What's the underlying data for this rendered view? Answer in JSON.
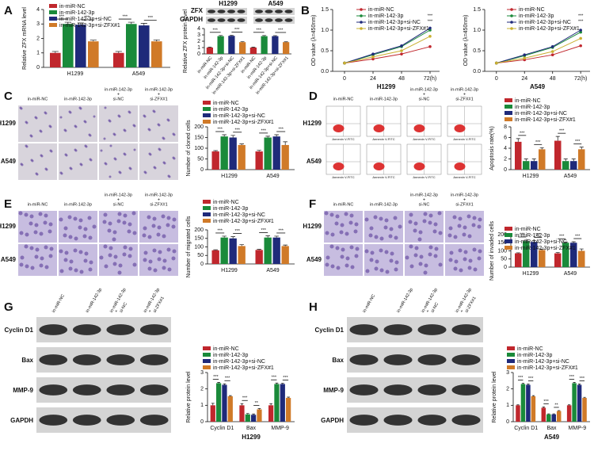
{
  "panel_labels": [
    "A",
    "B",
    "C",
    "D",
    "E",
    "F",
    "G",
    "H"
  ],
  "blot_A": {
    "rows": [
      "ZFX",
      "GAPDH"
    ],
    "groups": [
      "H1299",
      "A549"
    ]
  },
  "images_C": {
    "columns": [
      [
        "in-miR-NC"
      ],
      [
        "in-miR-142-3p"
      ],
      [
        "in-miR-142-3p",
        "+",
        "si-NC"
      ],
      [
        "in-miR-142-3p",
        "+",
        "si-ZFX#1"
      ]
    ],
    "rows": [
      "H1299",
      "A549"
    ]
  },
  "images_D": {
    "columns": [
      [
        "in-miR-NC"
      ],
      [
        "in-miR-142-3p"
      ],
      [
        "in-miR-142-3p",
        "+",
        "si-NC"
      ],
      [
        "in-miR-142-3p",
        "+",
        "si-ZFX#1"
      ]
    ],
    "rows": [
      "H1299",
      "A549"
    ],
    "flow_axis_label": "Annexin V-FITC"
  },
  "images_E": {
    "columns": [
      [
        "in-miR-NC"
      ],
      [
        "in-miR-142-3p"
      ],
      [
        "in-miR-142-3p",
        "+",
        "si-NC"
      ],
      [
        "in-miR-142-3p",
        "+",
        "si-ZFX#1"
      ]
    ],
    "rows": [
      "H1299",
      "A549"
    ]
  },
  "images_F": {
    "columns": [
      [
        "in-miR-NC"
      ],
      [
        "in-miR-142-3p"
      ],
      [
        "in-miR-142-3p",
        "+",
        "si-NC"
      ],
      [
        "in-miR-142-3p",
        "+",
        "si-ZFX#1"
      ]
    ],
    "rows": [
      "H1299",
      "A549"
    ]
  },
  "blot_G": {
    "columns": [
      [
        "in-miR-NC"
      ],
      [
        "in-miR-142-3p"
      ],
      [
        "in-miR-142-3p",
        "+",
        "si-NC"
      ],
      [
        "in-miR-142-3p",
        "+",
        "si-ZFX#1"
      ]
    ],
    "rows": [
      "Cyclin D1",
      "Bax",
      "MMP-9",
      "GAPDH"
    ]
  },
  "blot_H": {
    "columns": [
      [
        "in-miR-NC"
      ],
      [
        "in-miR-142-3p"
      ],
      [
        "in-miR-142-3p",
        "+",
        "si-NC"
      ],
      [
        "in-miR-142-3p",
        "+",
        "si-ZFX#1"
      ]
    ],
    "rows": [
      "Cyclin D1",
      "Bax",
      "MMP-9",
      "GAPDH"
    ]
  },
  "chart_data": [
    {
      "type": "bar",
      "ylabel": "Relative ZFX mRNA level",
      "categories": [
        "H1299",
        "A549"
      ],
      "ylim": [
        0,
        4
      ],
      "yticks": [
        0,
        1,
        2,
        3,
        4
      ],
      "series": [
        {
          "name": "in-miR-NC",
          "color": "#c0272d",
          "values": [
            1.0,
            1.0
          ],
          "errors": [
            0.1,
            0.1
          ]
        },
        {
          "name": "in-miR-142-3p",
          "color": "#1a8a3a",
          "values": [
            3.0,
            3.0
          ],
          "errors": [
            0.12,
            0.12
          ]
        },
        {
          "name": "in-miR-142-3p+si-NC",
          "color": "#1f2a7a",
          "values": [
            2.95,
            2.9
          ],
          "errors": [
            0.12,
            0.15
          ]
        },
        {
          "name": "in-miR-142-3p+si-ZFX#1",
          "color": "#d07a28",
          "values": [
            1.8,
            1.8
          ],
          "errors": [
            0.08,
            0.1
          ]
        }
      ],
      "sig": [
        [
          "***",
          "***"
        ],
        [
          "***",
          "***"
        ]
      ]
    },
    {
      "type": "bar",
      "ylabel": "Relative ZFX protein level",
      "categories": [
        "in-miR-NC",
        "in-miR-142-3p",
        "in-miR-142-3p+si-NC",
        "in-miR-142-3p+si-ZFX#1",
        "in-miR-NC",
        "in-miR-142-3p",
        "in-miR-142-3p+si-NC",
        "in-miR-142-3p+si-ZFX#1"
      ],
      "values": [
        1.0,
        2.8,
        2.85,
        1.85,
        1.0,
        2.8,
        2.8,
        1.85
      ],
      "errors": [
        0.08,
        0.1,
        0.08,
        0.08,
        0.08,
        0.1,
        0.08,
        0.06
      ],
      "colors": [
        "#c0272d",
        "#1a8a3a",
        "#1f2a7a",
        "#d07a28",
        "#c0272d",
        "#1a8a3a",
        "#1f2a7a",
        "#d07a28"
      ],
      "ylim": [
        0,
        4
      ],
      "yticks": [
        0,
        1,
        2,
        3,
        4
      ],
      "sig": [
        "***",
        "***",
        "***",
        "***"
      ]
    },
    {
      "type": "line",
      "ylabel": "OD value (λ=450nm)",
      "xlabel": "H1299",
      "x": [
        0,
        24,
        48,
        72
      ],
      "xlim": [
        -10,
        80
      ],
      "xticks": [
        0,
        24,
        48,
        {
          "value": 72,
          "label": "72(h)"
        }
      ],
      "ylim": [
        0,
        1.5
      ],
      "yticks": [
        {
          "value": 0,
          "label": "0.0"
        },
        0.5,
        {
          "value": 1,
          "label": "1.0"
        },
        1.5
      ],
      "series": [
        {
          "name": "in-miR-NC",
          "color": "#c0272d",
          "values": [
            0.2,
            0.3,
            0.42,
            0.6
          ]
        },
        {
          "name": "in-miR-142-3p",
          "color": "#1a8a3a",
          "values": [
            0.2,
            0.4,
            0.6,
            1.0
          ]
        },
        {
          "name": "in-miR-142-3p+si-NC",
          "color": "#1f2a7a",
          "values": [
            0.2,
            0.42,
            0.62,
            1.05
          ]
        },
        {
          "name": "in-miR-142-3p+si-ZFX#1",
          "color": "#c9b030",
          "values": [
            0.2,
            0.35,
            0.5,
            0.85
          ]
        }
      ],
      "sig": [
        "***",
        "***"
      ]
    },
    {
      "type": "line",
      "ylabel": "OD value (λ=450nm)",
      "xlabel": "A549",
      "x": [
        0,
        24,
        48,
        72
      ],
      "xlim": [
        -10,
        80
      ],
      "xticks": [
        0,
        24,
        48,
        {
          "value": 72,
          "label": "72(h)"
        }
      ],
      "ylim": [
        0,
        1.5
      ],
      "yticks": [
        {
          "value": 0,
          "label": "0.0"
        },
        0.5,
        {
          "value": 1,
          "label": "1.0"
        },
        1.5
      ],
      "series": [
        {
          "name": "in-miR-NC",
          "color": "#c0272d",
          "values": [
            0.2,
            0.28,
            0.4,
            0.62
          ]
        },
        {
          "name": "in-miR-142-3p",
          "color": "#1a8a3a",
          "values": [
            0.2,
            0.38,
            0.58,
            0.95
          ]
        },
        {
          "name": "in-miR-142-3p+si-NC",
          "color": "#1f2a7a",
          "values": [
            0.2,
            0.4,
            0.6,
            1.0
          ]
        },
        {
          "name": "in-miR-142-3p+si-ZFX#1",
          "color": "#c9b030",
          "values": [
            0.2,
            0.32,
            0.48,
            0.8
          ]
        }
      ],
      "sig": [
        "***",
        "***"
      ]
    },
    {
      "type": "bar",
      "ylabel": "Number of cloned cells",
      "categories": [
        "H1299",
        "A549"
      ],
      "ylim": [
        0,
        200
      ],
      "yticks": [
        0,
        50,
        100,
        150,
        200
      ],
      "series": [
        {
          "name": "in-miR-NC",
          "color": "#c0272d",
          "values": [
            85,
            85
          ],
          "errors": [
            4,
            5
          ]
        },
        {
          "name": "in-miR-142-3p",
          "color": "#1a8a3a",
          "values": [
            155,
            150
          ],
          "errors": [
            8,
            6
          ]
        },
        {
          "name": "in-miR-142-3p+si-NC",
          "color": "#1f2a7a",
          "values": [
            150,
            155
          ],
          "errors": [
            10,
            8
          ]
        },
        {
          "name": "in-miR-142-3p+si-ZFX#1",
          "color": "#d07a28",
          "values": [
            115,
            115
          ],
          "errors": [
            5,
            15
          ]
        }
      ],
      "sig": [
        [
          "***",
          "***"
        ],
        [
          "***",
          "***"
        ]
      ]
    },
    {
      "type": "bar",
      "ylabel": "Apoptosis rate(%)",
      "categories": [
        "H1299",
        "A549"
      ],
      "ylim": [
        0,
        8
      ],
      "yticks": [
        0,
        2,
        4,
        6,
        8
      ],
      "series": [
        {
          "name": "in-miR-NC",
          "color": "#c0272d",
          "values": [
            5.2,
            5.4
          ],
          "errors": [
            0.6,
            0.8
          ]
        },
        {
          "name": "in-miR-142-3p",
          "color": "#1a8a3a",
          "values": [
            1.6,
            1.6
          ],
          "errors": [
            0.4,
            0.4
          ]
        },
        {
          "name": "in-miR-142-3p+si-NC",
          "color": "#1f2a7a",
          "values": [
            1.6,
            1.6
          ],
          "errors": [
            0.4,
            0.4
          ]
        },
        {
          "name": "in-miR-142-3p+si-ZFX#1",
          "color": "#d07a28",
          "values": [
            3.8,
            3.8
          ],
          "errors": [
            0.3,
            0.4
          ]
        }
      ],
      "sig": [
        [
          "***",
          "***"
        ],
        [
          "***",
          "***"
        ]
      ]
    },
    {
      "type": "bar",
      "ylabel": "Number of migrated cells",
      "categories": [
        "H1299",
        "A549"
      ],
      "ylim": [
        0,
        200
      ],
      "yticks": [
        0,
        50,
        100,
        150,
        200
      ],
      "series": [
        {
          "name": "in-miR-NC",
          "color": "#c0272d",
          "values": [
            80,
            82
          ],
          "errors": [
            3,
            4
          ]
        },
        {
          "name": "in-miR-142-3p",
          "color": "#1a8a3a",
          "values": [
            155,
            155
          ],
          "errors": [
            8,
            10
          ]
        },
        {
          "name": "in-miR-142-3p+si-NC",
          "color": "#1f2a7a",
          "values": [
            150,
            155
          ],
          "errors": [
            10,
            8
          ]
        },
        {
          "name": "in-miR-142-3p+si-ZFX#1",
          "color": "#d07a28",
          "values": [
            105,
            105
          ],
          "errors": [
            8,
            6
          ]
        }
      ],
      "sig": [
        [
          "***",
          "***"
        ],
        [
          "***",
          "***"
        ]
      ]
    },
    {
      "type": "bar",
      "ylabel": "Number of invaded cells",
      "categories": [
        "H1299",
        "A549"
      ],
      "ylim": [
        0,
        200
      ],
      "yticks": [
        0,
        50,
        100,
        150,
        200
      ],
      "series": [
        {
          "name": "in-miR-NC",
          "color": "#c0272d",
          "values": [
            85,
            85
          ],
          "errors": [
            3,
            5
          ]
        },
        {
          "name": "in-miR-142-3p",
          "color": "#1a8a3a",
          "values": [
            160,
            150
          ],
          "errors": [
            6,
            5
          ]
        },
        {
          "name": "in-miR-142-3p+si-NC",
          "color": "#1f2a7a",
          "values": [
            155,
            150
          ],
          "errors": [
            8,
            6
          ]
        },
        {
          "name": "in-miR-142-3p+si-ZFX#1",
          "color": "#d07a28",
          "values": [
            105,
            100
          ],
          "errors": [
            6,
            12
          ]
        }
      ],
      "sig": [
        [
          "***",
          "***"
        ],
        [
          "***",
          "***"
        ]
      ]
    },
    {
      "type": "bar",
      "ylabel": "Relative protein level",
      "xlabel": "H1299",
      "categories": [
        "Cyclin D1",
        "Bax",
        "MMP-9"
      ],
      "ylim": [
        0,
        3
      ],
      "yticks": [
        0,
        1,
        2,
        3
      ],
      "series": [
        {
          "name": "in-miR-NC",
          "color": "#c0272d",
          "values": [
            1.0,
            1.0,
            1.0
          ],
          "errors": [
            0.12,
            0.1,
            0.1
          ]
        },
        {
          "name": "in-miR-142-3p",
          "color": "#1a8a3a",
          "values": [
            2.35,
            0.45,
            2.3
          ],
          "errors": [
            0.05,
            0.05,
            0.06
          ]
        },
        {
          "name": "in-miR-142-3p+si-NC",
          "color": "#1f2a7a",
          "values": [
            2.25,
            0.42,
            2.3
          ],
          "errors": [
            0.06,
            0.05,
            0.05
          ]
        },
        {
          "name": "in-miR-142-3p+si-ZFX#1",
          "color": "#d07a28",
          "values": [
            1.55,
            0.75,
            1.45
          ],
          "errors": [
            0.04,
            0.05,
            0.05
          ]
        }
      ],
      "sig": [
        [
          "***",
          "***"
        ],
        [
          "***",
          "**"
        ],
        [
          "***",
          "***"
        ]
      ]
    },
    {
      "type": "bar",
      "ylabel": "Relative protein level",
      "xlabel": "A549",
      "categories": [
        "Cyclin D1",
        "Bax",
        "MMP-9"
      ],
      "ylim": [
        0,
        3
      ],
      "yticks": [
        0,
        1,
        2,
        3
      ],
      "series": [
        {
          "name": "in-miR-NC",
          "color": "#c0272d",
          "values": [
            1.0,
            0.85,
            1.0
          ],
          "errors": [
            0.03,
            0.05,
            0.03
          ]
        },
        {
          "name": "in-miR-142-3p",
          "color": "#1a8a3a",
          "values": [
            2.3,
            0.45,
            2.35
          ],
          "errors": [
            0.05,
            0.03,
            0.05
          ]
        },
        {
          "name": "in-miR-142-3p+si-NC",
          "color": "#1f2a7a",
          "values": [
            2.25,
            0.45,
            2.25
          ],
          "errors": [
            0.05,
            0.03,
            0.05
          ]
        },
        {
          "name": "in-miR-142-3p+si-ZFX#1",
          "color": "#d07a28",
          "values": [
            1.55,
            0.65,
            1.45
          ],
          "errors": [
            0.04,
            0.03,
            0.04
          ]
        }
      ],
      "sig": [
        [
          "***",
          "***"
        ],
        [
          "***",
          "**"
        ],
        [
          "***",
          "***"
        ]
      ]
    }
  ]
}
